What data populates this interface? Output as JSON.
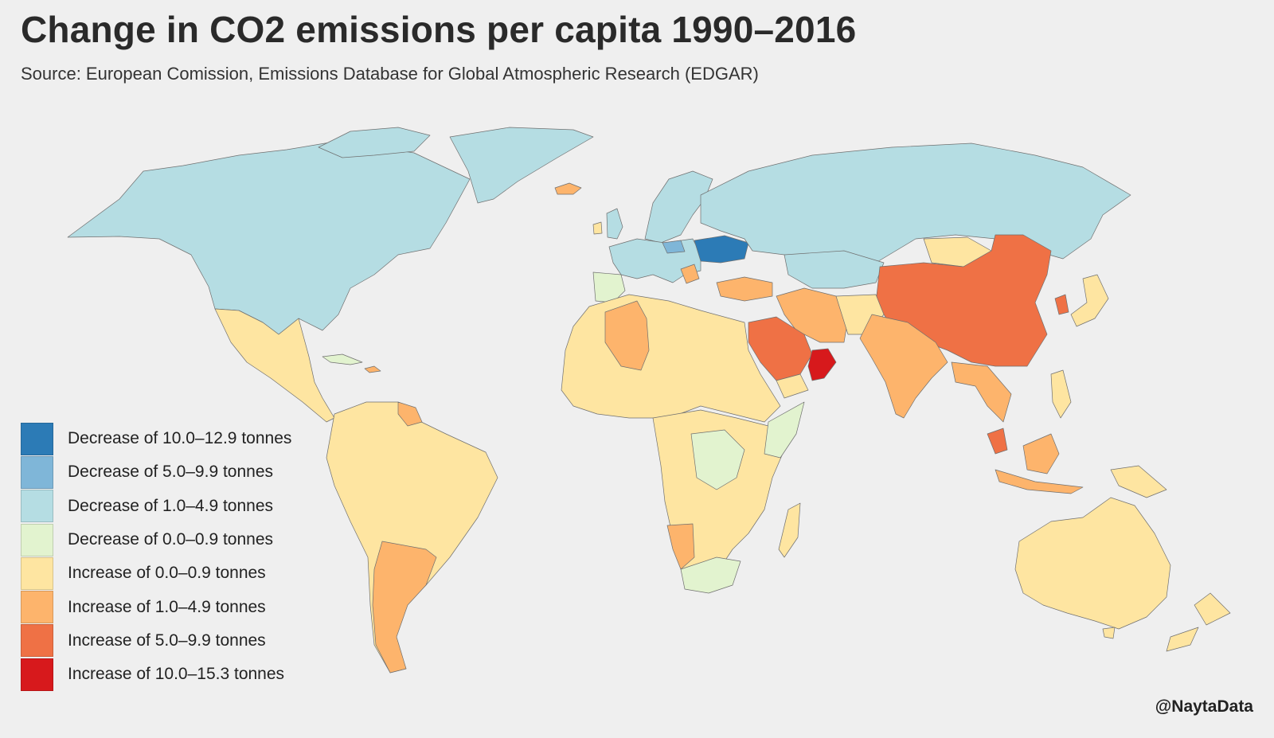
{
  "title": "Change in CO2 emissions per capita 1990–2016",
  "subtitle": "Source: European Comission, Emissions Database for Global Atmospheric Research (EDGAR)",
  "credit": "@NaytaData",
  "legend": [
    {
      "label": "Decrease of 10.0–12.9 tonnes",
      "color": "#2c7bb6"
    },
    {
      "label": "Decrease of 5.0–9.9 tonnes",
      "color": "#7fb6d8"
    },
    {
      "label": "Decrease of 1.0–4.9 tonnes",
      "color": "#b5dde3"
    },
    {
      "label": "Decrease of 0.0–0.9 tonnes",
      "color": "#e2f3cf"
    },
    {
      "label": "Increase of 0.0–0.9 tonnes",
      "color": "#fee5a1"
    },
    {
      "label": "Increase of 1.0–4.9 tonnes",
      "color": "#fdb46c"
    },
    {
      "label": "Increase of 5.0–9.9 tonnes",
      "color": "#ef7145"
    },
    {
      "label": "Increase of 10.0–15.3 tonnes",
      "color": "#d7191c"
    }
  ]
}
